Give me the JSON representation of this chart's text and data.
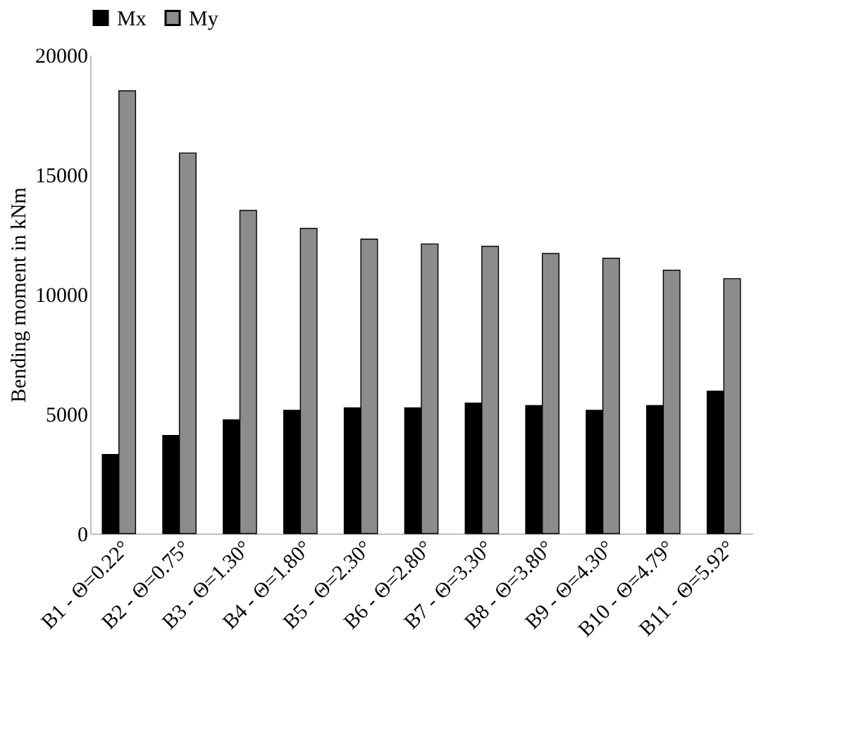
{
  "chart_data": {
    "type": "bar",
    "ylabel": "Bending moment in kNm",
    "categories": [
      "B1 - Θ=0.22°",
      "B2 - Θ=0.75°",
      "B3 - Θ=1.30°",
      "B4 - Θ=1.80°",
      "B5 - Θ=2.30°",
      "B6 - Θ=2.80°",
      "B7 - Θ=3.30°",
      "B8 - Θ=3.80°",
      "B9 - Θ=4.30°",
      "B10 - Θ=4.79°",
      "B11 - Θ=5.92°"
    ],
    "series": [
      {
        "name": "Mx",
        "color": "#000000",
        "values": [
          3300,
          4100,
          4750,
          5150,
          5250,
          5250,
          5450,
          5350,
          5150,
          5350,
          5950
        ]
      },
      {
        "name": "My",
        "color": "#8c8c8c",
        "values": [
          18500,
          15900,
          13500,
          12750,
          12300,
          12100,
          12000,
          11700,
          11500,
          11000,
          10650
        ]
      }
    ],
    "ylim": [
      0,
      20000
    ],
    "yticks": [
      0,
      5000,
      10000,
      15000,
      20000
    ],
    "grid": false,
    "legend": "top"
  }
}
